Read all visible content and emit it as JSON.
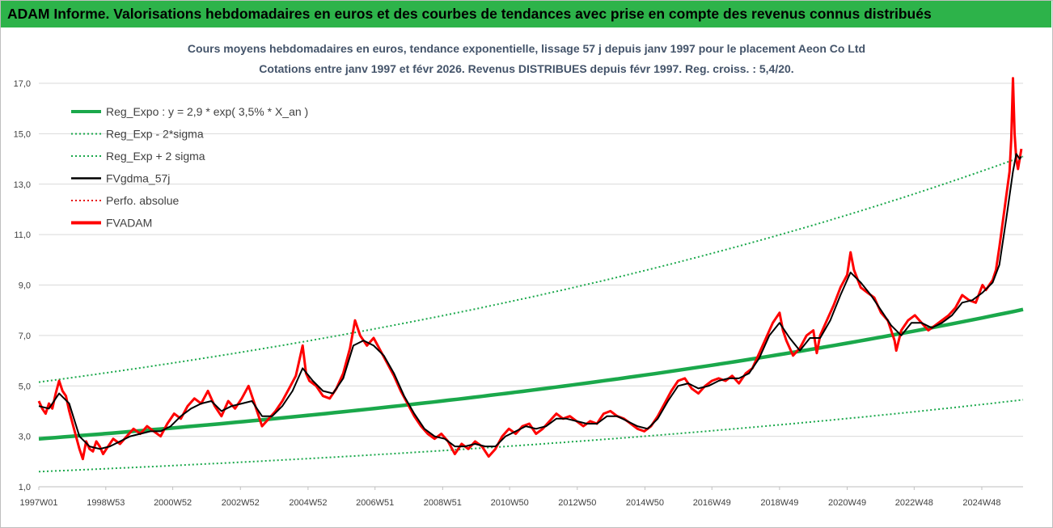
{
  "header": {
    "title": "ADAM Informe. Valorisations hebdomadaires en euros et des courbes de tendances avec prise en compte des revenus connus distribués"
  },
  "chart_data": {
    "type": "line",
    "title_line1": "Cours moyens hebdomadaires en euros, tendance exponentielle, lissage 57 j depuis janv 1997 pour le placement Aeon Co Ltd",
    "title_line2": "Cotations entre janv 1997 et févr 2026. Revenus DISTRIBUES depuis févr 1997.  Reg. croiss. : 5,4/20.",
    "ylim": [
      1,
      17
    ],
    "yticks": [
      "1,0",
      "3,0",
      "5,0",
      "7,0",
      "9,0",
      "11,0",
      "13,0",
      "15,0",
      "17,0"
    ],
    "xlim": [
      1997.0,
      2026.1
    ],
    "xticks": [
      {
        "label": "1997W01",
        "x": 1997.0
      },
      {
        "label": "1998W53",
        "x": 1998.98
      },
      {
        "label": "2000W52",
        "x": 2000.96
      },
      {
        "label": "2002W52",
        "x": 2002.96
      },
      {
        "label": "2004W52",
        "x": 2004.96
      },
      {
        "label": "2006W51",
        "x": 2006.94
      },
      {
        "label": "2008W51",
        "x": 2008.94
      },
      {
        "label": "2010W50",
        "x": 2010.92
      },
      {
        "label": "2012W50",
        "x": 2012.92
      },
      {
        "label": "2014W50",
        "x": 2014.92
      },
      {
        "label": "2016W49",
        "x": 2016.9
      },
      {
        "label": "2018W49",
        "x": 2018.9
      },
      {
        "label": "2020W49",
        "x": 2020.9
      },
      {
        "label": "2022W48",
        "x": 2022.88
      },
      {
        "label": "2024W48",
        "x": 2024.88
      }
    ],
    "legend": [
      {
        "label": "Reg_Expo : y = 2,9 * exp( 3,5% *  X_an )",
        "color": "#1aa84b",
        "style": "solid-thick"
      },
      {
        "label": "Reg_Exp - 2*sigma",
        "color": "#1aa84b",
        "style": "dotted"
      },
      {
        "label": "Reg_Exp + 2 sigma",
        "color": "#1aa84b",
        "style": "dotted"
      },
      {
        "label": "FVgdma_57j",
        "color": "#000000",
        "style": "solid"
      },
      {
        "label": "Perfo. absolue",
        "color": "#e81010",
        "style": "dotted"
      },
      {
        "label": "FVADAM",
        "color": "#ff0000",
        "style": "solid-thick"
      }
    ],
    "regression": {
      "a": 2.9,
      "rate": 0.035,
      "upper_band_start": 5.15,
      "upper_band_end": 14.1,
      "lower_band_start": 1.6,
      "lower_band_end": 4.45
    },
    "series": [
      {
        "name": "FVADAM",
        "color": "#ff0000",
        "points": [
          [
            1997.0,
            4.4
          ],
          [
            1997.1,
            4.1
          ],
          [
            1997.2,
            3.9
          ],
          [
            1997.3,
            4.3
          ],
          [
            1997.4,
            4.1
          ],
          [
            1997.5,
            4.7
          ],
          [
            1997.6,
            5.2
          ],
          [
            1997.7,
            4.8
          ],
          [
            1997.8,
            4.6
          ],
          [
            1997.9,
            4.0
          ],
          [
            1998.0,
            3.5
          ],
          [
            1998.1,
            3.0
          ],
          [
            1998.2,
            2.5
          ],
          [
            1998.3,
            2.1
          ],
          [
            1998.4,
            2.8
          ],
          [
            1998.5,
            2.5
          ],
          [
            1998.6,
            2.4
          ],
          [
            1998.7,
            2.8
          ],
          [
            1998.8,
            2.6
          ],
          [
            1998.9,
            2.3
          ],
          [
            1999.0,
            2.5
          ],
          [
            1999.2,
            2.9
          ],
          [
            1999.4,
            2.7
          ],
          [
            1999.6,
            3.0
          ],
          [
            1999.8,
            3.3
          ],
          [
            2000.0,
            3.1
          ],
          [
            2000.2,
            3.4
          ],
          [
            2000.4,
            3.2
          ],
          [
            2000.6,
            3.0
          ],
          [
            2000.8,
            3.5
          ],
          [
            2001.0,
            3.9
          ],
          [
            2001.2,
            3.7
          ],
          [
            2001.4,
            4.2
          ],
          [
            2001.6,
            4.5
          ],
          [
            2001.8,
            4.3
          ],
          [
            2002.0,
            4.8
          ],
          [
            2002.2,
            4.2
          ],
          [
            2002.4,
            3.8
          ],
          [
            2002.6,
            4.4
          ],
          [
            2002.8,
            4.1
          ],
          [
            2003.0,
            4.5
          ],
          [
            2003.2,
            5.0
          ],
          [
            2003.4,
            4.2
          ],
          [
            2003.6,
            3.4
          ],
          [
            2003.8,
            3.7
          ],
          [
            2004.0,
            4.0
          ],
          [
            2004.2,
            4.4
          ],
          [
            2004.4,
            4.9
          ],
          [
            2004.6,
            5.4
          ],
          [
            2004.8,
            6.6
          ],
          [
            2004.9,
            5.5
          ],
          [
            2005.0,
            5.2
          ],
          [
            2005.2,
            5.0
          ],
          [
            2005.4,
            4.6
          ],
          [
            2005.6,
            4.5
          ],
          [
            2005.8,
            4.9
          ],
          [
            2006.0,
            5.5
          ],
          [
            2006.2,
            6.5
          ],
          [
            2006.35,
            7.6
          ],
          [
            2006.5,
            7.0
          ],
          [
            2006.7,
            6.6
          ],
          [
            2006.9,
            6.9
          ],
          [
            2007.1,
            6.4
          ],
          [
            2007.3,
            5.9
          ],
          [
            2007.5,
            5.4
          ],
          [
            2007.7,
            4.8
          ],
          [
            2007.9,
            4.3
          ],
          [
            2008.1,
            3.8
          ],
          [
            2008.3,
            3.4
          ],
          [
            2008.5,
            3.1
          ],
          [
            2008.7,
            2.9
          ],
          [
            2008.9,
            3.1
          ],
          [
            2009.1,
            2.8
          ],
          [
            2009.3,
            2.3
          ],
          [
            2009.5,
            2.7
          ],
          [
            2009.7,
            2.5
          ],
          [
            2009.9,
            2.8
          ],
          [
            2010.1,
            2.6
          ],
          [
            2010.3,
            2.2
          ],
          [
            2010.5,
            2.5
          ],
          [
            2010.7,
            3.0
          ],
          [
            2010.9,
            3.3
          ],
          [
            2011.1,
            3.1
          ],
          [
            2011.3,
            3.4
          ],
          [
            2011.5,
            3.5
          ],
          [
            2011.7,
            3.1
          ],
          [
            2011.9,
            3.3
          ],
          [
            2012.1,
            3.6
          ],
          [
            2012.3,
            3.9
          ],
          [
            2012.5,
            3.7
          ],
          [
            2012.7,
            3.8
          ],
          [
            2012.9,
            3.6
          ],
          [
            2013.1,
            3.4
          ],
          [
            2013.3,
            3.6
          ],
          [
            2013.5,
            3.5
          ],
          [
            2013.7,
            3.9
          ],
          [
            2013.9,
            4.0
          ],
          [
            2014.1,
            3.8
          ],
          [
            2014.3,
            3.7
          ],
          [
            2014.5,
            3.5
          ],
          [
            2014.7,
            3.3
          ],
          [
            2014.9,
            3.2
          ],
          [
            2015.1,
            3.4
          ],
          [
            2015.3,
            3.8
          ],
          [
            2015.5,
            4.3
          ],
          [
            2015.7,
            4.8
          ],
          [
            2015.9,
            5.2
          ],
          [
            2016.1,
            5.3
          ],
          [
            2016.3,
            4.9
          ],
          [
            2016.5,
            4.7
          ],
          [
            2016.7,
            5.0
          ],
          [
            2016.9,
            5.2
          ],
          [
            2017.1,
            5.3
          ],
          [
            2017.3,
            5.2
          ],
          [
            2017.5,
            5.4
          ],
          [
            2017.7,
            5.1
          ],
          [
            2017.9,
            5.5
          ],
          [
            2018.1,
            5.7
          ],
          [
            2018.3,
            6.3
          ],
          [
            2018.5,
            6.9
          ],
          [
            2018.7,
            7.5
          ],
          [
            2018.9,
            7.9
          ],
          [
            2019.0,
            7.2
          ],
          [
            2019.1,
            6.8
          ],
          [
            2019.3,
            6.2
          ],
          [
            2019.5,
            6.5
          ],
          [
            2019.7,
            7.0
          ],
          [
            2019.9,
            7.2
          ],
          [
            2020.0,
            6.3
          ],
          [
            2020.1,
            7.0
          ],
          [
            2020.3,
            7.6
          ],
          [
            2020.5,
            8.2
          ],
          [
            2020.7,
            8.9
          ],
          [
            2020.9,
            9.4
          ],
          [
            2021.0,
            10.3
          ],
          [
            2021.1,
            9.6
          ],
          [
            2021.3,
            8.9
          ],
          [
            2021.5,
            8.7
          ],
          [
            2021.7,
            8.5
          ],
          [
            2021.9,
            7.9
          ],
          [
            2022.1,
            7.6
          ],
          [
            2022.3,
            6.8
          ],
          [
            2022.35,
            6.4
          ],
          [
            2022.5,
            7.2
          ],
          [
            2022.7,
            7.6
          ],
          [
            2022.9,
            7.8
          ],
          [
            2023.1,
            7.5
          ],
          [
            2023.3,
            7.2
          ],
          [
            2023.5,
            7.4
          ],
          [
            2023.7,
            7.6
          ],
          [
            2023.9,
            7.8
          ],
          [
            2024.1,
            8.1
          ],
          [
            2024.3,
            8.6
          ],
          [
            2024.5,
            8.4
          ],
          [
            2024.7,
            8.3
          ],
          [
            2024.9,
            9.0
          ],
          [
            2025.0,
            8.8
          ],
          [
            2025.1,
            9.0
          ],
          [
            2025.2,
            9.2
          ],
          [
            2025.3,
            9.6
          ],
          [
            2025.4,
            10.5
          ],
          [
            2025.5,
            11.5
          ],
          [
            2025.6,
            12.5
          ],
          [
            2025.7,
            13.5
          ],
          [
            2025.75,
            14.8
          ],
          [
            2025.8,
            17.2
          ],
          [
            2025.85,
            15.0
          ],
          [
            2025.9,
            14.0
          ],
          [
            2025.95,
            13.6
          ],
          [
            2026.0,
            14.0
          ],
          [
            2026.05,
            14.4
          ]
        ]
      },
      {
        "name": "FVgdma_57j",
        "color": "#000000",
        "points": [
          [
            1997.0,
            4.2
          ],
          [
            1997.3,
            4.1
          ],
          [
            1997.6,
            4.7
          ],
          [
            1997.9,
            4.3
          ],
          [
            1998.2,
            3.0
          ],
          [
            1998.5,
            2.6
          ],
          [
            1998.8,
            2.5
          ],
          [
            1999.1,
            2.6
          ],
          [
            1999.4,
            2.8
          ],
          [
            1999.7,
            3.0
          ],
          [
            2000.0,
            3.1
          ],
          [
            2000.3,
            3.2
          ],
          [
            2000.6,
            3.2
          ],
          [
            2000.9,
            3.4
          ],
          [
            2001.2,
            3.8
          ],
          [
            2001.5,
            4.1
          ],
          [
            2001.8,
            4.3
          ],
          [
            2002.1,
            4.4
          ],
          [
            2002.4,
            4.0
          ],
          [
            2002.7,
            4.2
          ],
          [
            2003.0,
            4.3
          ],
          [
            2003.3,
            4.4
          ],
          [
            2003.6,
            3.8
          ],
          [
            2003.9,
            3.8
          ],
          [
            2004.2,
            4.2
          ],
          [
            2004.5,
            4.8
          ],
          [
            2004.8,
            5.7
          ],
          [
            2005.1,
            5.2
          ],
          [
            2005.4,
            4.8
          ],
          [
            2005.7,
            4.7
          ],
          [
            2006.0,
            5.3
          ],
          [
            2006.3,
            6.6
          ],
          [
            2006.6,
            6.8
          ],
          [
            2006.9,
            6.6
          ],
          [
            2007.2,
            6.2
          ],
          [
            2007.5,
            5.5
          ],
          [
            2007.8,
            4.6
          ],
          [
            2008.1,
            3.9
          ],
          [
            2008.4,
            3.3
          ],
          [
            2008.7,
            3.0
          ],
          [
            2009.0,
            2.9
          ],
          [
            2009.3,
            2.6
          ],
          [
            2009.6,
            2.6
          ],
          [
            2009.9,
            2.7
          ],
          [
            2010.2,
            2.6
          ],
          [
            2010.5,
            2.6
          ],
          [
            2010.8,
            3.0
          ],
          [
            2011.1,
            3.2
          ],
          [
            2011.4,
            3.4
          ],
          [
            2011.7,
            3.3
          ],
          [
            2012.0,
            3.4
          ],
          [
            2012.3,
            3.7
          ],
          [
            2012.6,
            3.7
          ],
          [
            2012.9,
            3.6
          ],
          [
            2013.2,
            3.5
          ],
          [
            2013.5,
            3.5
          ],
          [
            2013.8,
            3.8
          ],
          [
            2014.1,
            3.8
          ],
          [
            2014.4,
            3.6
          ],
          [
            2014.7,
            3.4
          ],
          [
            2015.0,
            3.3
          ],
          [
            2015.3,
            3.7
          ],
          [
            2015.6,
            4.4
          ],
          [
            2015.9,
            5.0
          ],
          [
            2016.2,
            5.1
          ],
          [
            2016.5,
            4.9
          ],
          [
            2016.8,
            5.0
          ],
          [
            2017.1,
            5.2
          ],
          [
            2017.4,
            5.3
          ],
          [
            2017.7,
            5.3
          ],
          [
            2018.0,
            5.5
          ],
          [
            2018.3,
            6.1
          ],
          [
            2018.6,
            7.0
          ],
          [
            2018.9,
            7.5
          ],
          [
            2019.2,
            6.9
          ],
          [
            2019.5,
            6.4
          ],
          [
            2019.8,
            6.9
          ],
          [
            2020.1,
            6.9
          ],
          [
            2020.4,
            7.6
          ],
          [
            2020.7,
            8.6
          ],
          [
            2021.0,
            9.5
          ],
          [
            2021.3,
            9.1
          ],
          [
            2021.6,
            8.6
          ],
          [
            2021.9,
            8.0
          ],
          [
            2022.2,
            7.4
          ],
          [
            2022.5,
            7.0
          ],
          [
            2022.8,
            7.5
          ],
          [
            2023.1,
            7.5
          ],
          [
            2023.4,
            7.3
          ],
          [
            2023.7,
            7.5
          ],
          [
            2024.0,
            7.8
          ],
          [
            2024.3,
            8.3
          ],
          [
            2024.6,
            8.4
          ],
          [
            2024.9,
            8.7
          ],
          [
            2025.2,
            9.1
          ],
          [
            2025.4,
            9.8
          ],
          [
            2025.6,
            11.6
          ],
          [
            2025.8,
            13.5
          ],
          [
            2025.9,
            14.2
          ],
          [
            2026.0,
            14.0
          ],
          [
            2026.05,
            14.1
          ]
        ]
      }
    ]
  }
}
